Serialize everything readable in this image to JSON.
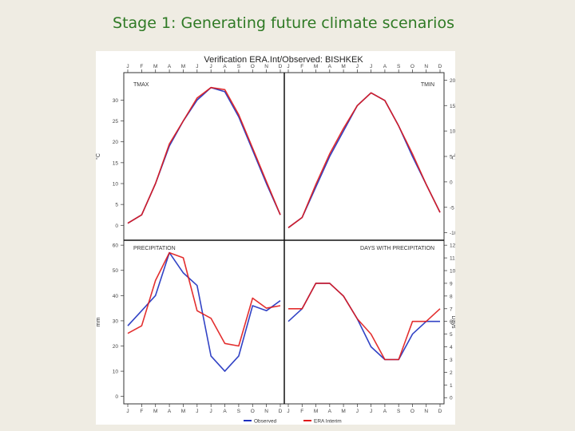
{
  "slide": {
    "title": "Stage 1: Generating future climate scenarios"
  },
  "colors": {
    "title": "#2f7a25",
    "observed": "#1c2fbf",
    "era": "#e01818",
    "axis": "#333333"
  },
  "chart_data": {
    "type": "line",
    "title": "Verification ERA.Int/Observed: BISHKEK",
    "months": [
      "J",
      "F",
      "M",
      "A",
      "M",
      "J",
      "J",
      "A",
      "S",
      "O",
      "N",
      "D"
    ],
    "legend": [
      "Observed",
      "ERA Interim"
    ],
    "legend_position": "bottom",
    "panels": [
      {
        "name": "TMAX",
        "position": "top-left",
        "ylabel": "°C",
        "ylim": [
          -3,
          36
        ],
        "ticks": [
          0,
          5,
          10,
          15,
          20,
          25,
          30
        ],
        "tick_labels": [
          "0",
          "5",
          "10",
          "15",
          "20",
          "25",
          "30"
        ],
        "series": [
          {
            "name": "Observed",
            "values": [
              0.5,
              2.5,
              10,
              19,
              25,
              30,
              33,
              32,
              26,
              18,
              10,
              2.5
            ]
          },
          {
            "name": "ERA Interim",
            "values": [
              0.5,
              2.5,
              10,
              19.5,
              25,
              30.5,
              33,
              32.5,
              26.5,
              18.5,
              10.5,
              2.5
            ]
          }
        ]
      },
      {
        "name": "TMIN",
        "position": "top-right",
        "ylabel": "°C",
        "ylim": [
          -11,
          21
        ],
        "ticks": [
          -10,
          -5,
          0,
          5,
          10,
          15,
          20
        ],
        "tick_labels": [
          "-10",
          "-5",
          "0",
          "5",
          "10",
          "15",
          "20"
        ],
        "series": [
          {
            "name": "Observed",
            "values": [
              -9,
              -7,
              -1,
              5,
              10,
              15,
              17.5,
              16,
              11,
              5,
              -0.5,
              -6
            ]
          },
          {
            "name": "ERA Interim",
            "values": [
              -9,
              -7,
              -0.5,
              5.5,
              10.5,
              15,
              17.5,
              16,
              11,
              5.5,
              -0.5,
              -6
            ]
          }
        ]
      },
      {
        "name": "PRECIPITATION",
        "position": "bottom-left",
        "ylabel": "mm",
        "ylim": [
          -2,
          61
        ],
        "ticks": [
          0,
          10,
          20,
          30,
          40,
          50,
          60
        ],
        "tick_labels": [
          "0",
          "10",
          "20",
          "30",
          "40",
          "50",
          "60"
        ],
        "series": [
          {
            "name": "Observed",
            "values": [
              28,
              34,
              40,
              57,
              49,
              44,
              16,
              10,
              16,
              36,
              34,
              38
            ]
          },
          {
            "name": "ERA Interim",
            "values": [
              25,
              28,
              46,
              57,
              55,
              34,
              31,
              21,
              20,
              39,
              35,
              36
            ]
          }
        ]
      },
      {
        "name": "DAYS WITH PRECIPITATION",
        "position": "bottom-right",
        "ylabel": "Days",
        "ylim": [
          -0.3,
          12.2
        ],
        "ticks": [
          0,
          1,
          2,
          3,
          4,
          5,
          6,
          7,
          8,
          9,
          10,
          11,
          12
        ],
        "tick_labels": [
          "0",
          "1",
          "2",
          "3",
          "4",
          "5",
          "6",
          "7",
          "8",
          "9",
          "10",
          "11",
          "12"
        ],
        "series": [
          {
            "name": "Observed",
            "values": [
              6,
              7,
              9,
              9,
              8,
              6.2,
              4,
              3,
              3,
              5,
              6,
              6
            ]
          },
          {
            "name": "ERA Interim",
            "values": [
              7,
              7,
              9,
              9,
              8,
              6.2,
              5,
              3,
              3,
              6,
              6,
              7
            ]
          }
        ]
      }
    ]
  }
}
